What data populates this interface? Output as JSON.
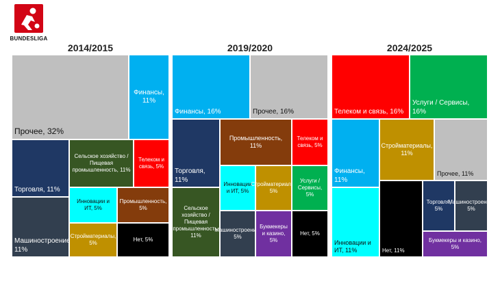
{
  "brand": {
    "logo_text": "BUNDESLIGA"
  },
  "chart_data": [
    {
      "type": "treemap",
      "title": "2014/2015",
      "unit": "%",
      "items": [
        {
          "label": "Прочее, 32%",
          "category": "Прочее",
          "value": 32,
          "color": "#bfbfbf",
          "text_color": "#111111"
        },
        {
          "label": "Финансы, 11%",
          "category": "Финансы",
          "value": 11,
          "color": "#00b0f0",
          "text_color": "#ffffff"
        },
        {
          "label": "Торговля, 11%",
          "category": "Торговля",
          "value": 11,
          "color": "#1f3864",
          "text_color": "#ffffff"
        },
        {
          "label": "Машиностроение, 11%",
          "category": "Машиностроение",
          "value": 11,
          "color": "#323f4f",
          "text_color": "#ffffff"
        },
        {
          "label": "Сельское хозяйство / Пищевая промышленность, 11%",
          "category": "Сельское хозяйство / Пищевая промышленность",
          "value": 11,
          "color": "#375623",
          "text_color": "#ffffff"
        },
        {
          "label": "Телеком и связь, 5%",
          "category": "Телеком и связь",
          "value": 5,
          "color": "#ff0000",
          "text_color": "#ffffff"
        },
        {
          "label": "Инновации и ИТ, 5%",
          "category": "Инновации и ИТ",
          "value": 5,
          "color": "#00ffff",
          "text_color": "#111111"
        },
        {
          "label": "Промышленность, 5%",
          "category": "Промышленность",
          "value": 5,
          "color": "#843c0c",
          "text_color": "#ffffff"
        },
        {
          "label": "Стройматериалы, 5%",
          "category": "Стройматериалы",
          "value": 5,
          "color": "#bf9000",
          "text_color": "#ffffff"
        },
        {
          "label": "Нет, 5%",
          "category": "Нет",
          "value": 5,
          "color": "#000000",
          "text_color": "#ffffff"
        }
      ]
    },
    {
      "type": "treemap",
      "title": "2019/2020",
      "unit": "%",
      "items": [
        {
          "label": "Финансы, 16%",
          "category": "Финансы",
          "value": 16,
          "color": "#00b0f0",
          "text_color": "#ffffff"
        },
        {
          "label": "Прочее, 16%",
          "category": "Прочее",
          "value": 16,
          "color": "#bfbfbf",
          "text_color": "#111111"
        },
        {
          "label": "Торговля, 11%",
          "category": "Торговля",
          "value": 11,
          "color": "#1f3864",
          "text_color": "#ffffff"
        },
        {
          "label": "Промышленность, 11%",
          "category": "Промышленность",
          "value": 11,
          "color": "#843c0c",
          "text_color": "#ffffff"
        },
        {
          "label": "Телеком и связь, 5%",
          "category": "Телеком и связь",
          "value": 5,
          "color": "#ff0000",
          "text_color": "#ffffff"
        },
        {
          "label": "Сельское хозяйство / Пищевая промышленность, 11%",
          "category": "Сельское хозяйство / Пищевая промышленность",
          "value": 11,
          "color": "#375623",
          "text_color": "#ffffff"
        },
        {
          "label": "Инновации и ИТ, 5%",
          "category": "Инновации и ИТ",
          "value": 5,
          "color": "#00ffff",
          "text_color": "#111111"
        },
        {
          "label": "Стройматериалы, 5%",
          "category": "Стройматериалы",
          "value": 5,
          "color": "#bf9000",
          "text_color": "#ffffff"
        },
        {
          "label": "Услуги / Сервисы, 5%",
          "category": "Услуги / Сервисы",
          "value": 5,
          "color": "#00b050",
          "text_color": "#ffffff"
        },
        {
          "label": "Машиностроение, 5%",
          "category": "Машиностроение",
          "value": 5,
          "color": "#323f4f",
          "text_color": "#ffffff"
        },
        {
          "label": "Букмекеры и казино, 5%",
          "category": "Букмекеры и казино",
          "value": 5,
          "color": "#7030a0",
          "text_color": "#ffffff"
        },
        {
          "label": "Нет, 5%",
          "category": "Нет",
          "value": 5,
          "color": "#000000",
          "text_color": "#ffffff"
        }
      ]
    },
    {
      "type": "treemap",
      "title": "2024/2025",
      "unit": "%",
      "items": [
        {
          "label": "Телеком и связь, 16%",
          "category": "Телеком и связь",
          "value": 16,
          "color": "#ff0000",
          "text_color": "#ffffff"
        },
        {
          "label": "Услуги / Сервисы, 16%",
          "category": "Услуги / Сервисы",
          "value": 16,
          "color": "#00b050",
          "text_color": "#ffffff"
        },
        {
          "label": "Финансы, 11%",
          "category": "Финансы",
          "value": 11,
          "color": "#00b0f0",
          "text_color": "#ffffff"
        },
        {
          "label": "Стройматериалы, 11%",
          "category": "Стройматериалы",
          "value": 11,
          "color": "#bf9000",
          "text_color": "#ffffff"
        },
        {
          "label": "Прочее, 11%",
          "category": "Прочее",
          "value": 11,
          "color": "#bfbfbf",
          "text_color": "#111111"
        },
        {
          "label": "Инновации и ИТ, 11%",
          "category": "Инновации и ИТ",
          "value": 11,
          "color": "#00ffff",
          "text_color": "#111111"
        },
        {
          "label": "Нет, 11%",
          "category": "Нет",
          "value": 11,
          "color": "#000000",
          "text_color": "#ffffff"
        },
        {
          "label": "Торговля, 5%",
          "category": "Торговля",
          "value": 5,
          "color": "#1f3864",
          "text_color": "#ffffff"
        },
        {
          "label": "Машиностроение, 5%",
          "category": "Машиностроение",
          "value": 5,
          "color": "#323f4f",
          "text_color": "#ffffff"
        },
        {
          "label": "Букмекеры и казино, 5%",
          "category": "Букмекеры и казино",
          "value": 5,
          "color": "#7030a0",
          "text_color": "#ffffff"
        }
      ]
    }
  ]
}
